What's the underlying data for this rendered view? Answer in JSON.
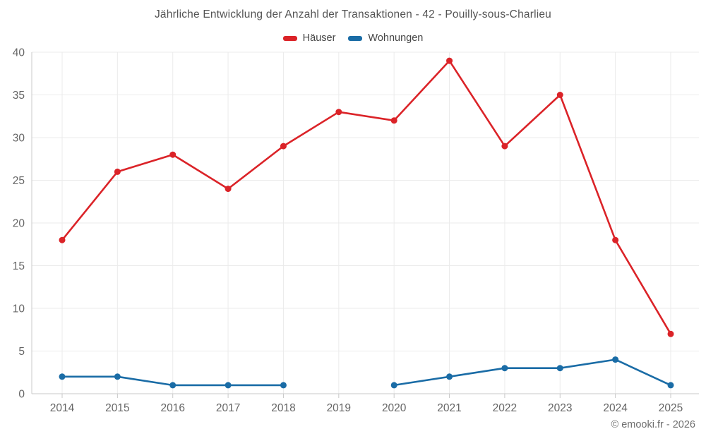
{
  "title": "Jährliche Entwicklung der Anzahl der Transaktionen - 42 - Pouilly-sous-Charlieu",
  "footer": "© emooki.fr - 2026",
  "chart_data": {
    "type": "line",
    "title": "Jährliche Entwicklung der Anzahl der Transaktionen - 42 - Pouilly-sous-Charlieu",
    "categories": [
      "2014",
      "2015",
      "2016",
      "2017",
      "2018",
      "2019",
      "2020",
      "2021",
      "2022",
      "2023",
      "2024",
      "2025"
    ],
    "series": [
      {
        "name": "Häuser",
        "color": "#db2328",
        "values": [
          18,
          26,
          28,
          24,
          29,
          33,
          32,
          39,
          29,
          35,
          18,
          7
        ]
      },
      {
        "name": "Wohnungen",
        "color": "#1a6ca6",
        "values": [
          2,
          2,
          1,
          1,
          1,
          null,
          1,
          2,
          3,
          3,
          4,
          1
        ]
      }
    ],
    "xlabel": "",
    "ylabel": "",
    "ylim": [
      0,
      40
    ],
    "ytick_step": 5,
    "grid": true,
    "legend_position": "top"
  }
}
